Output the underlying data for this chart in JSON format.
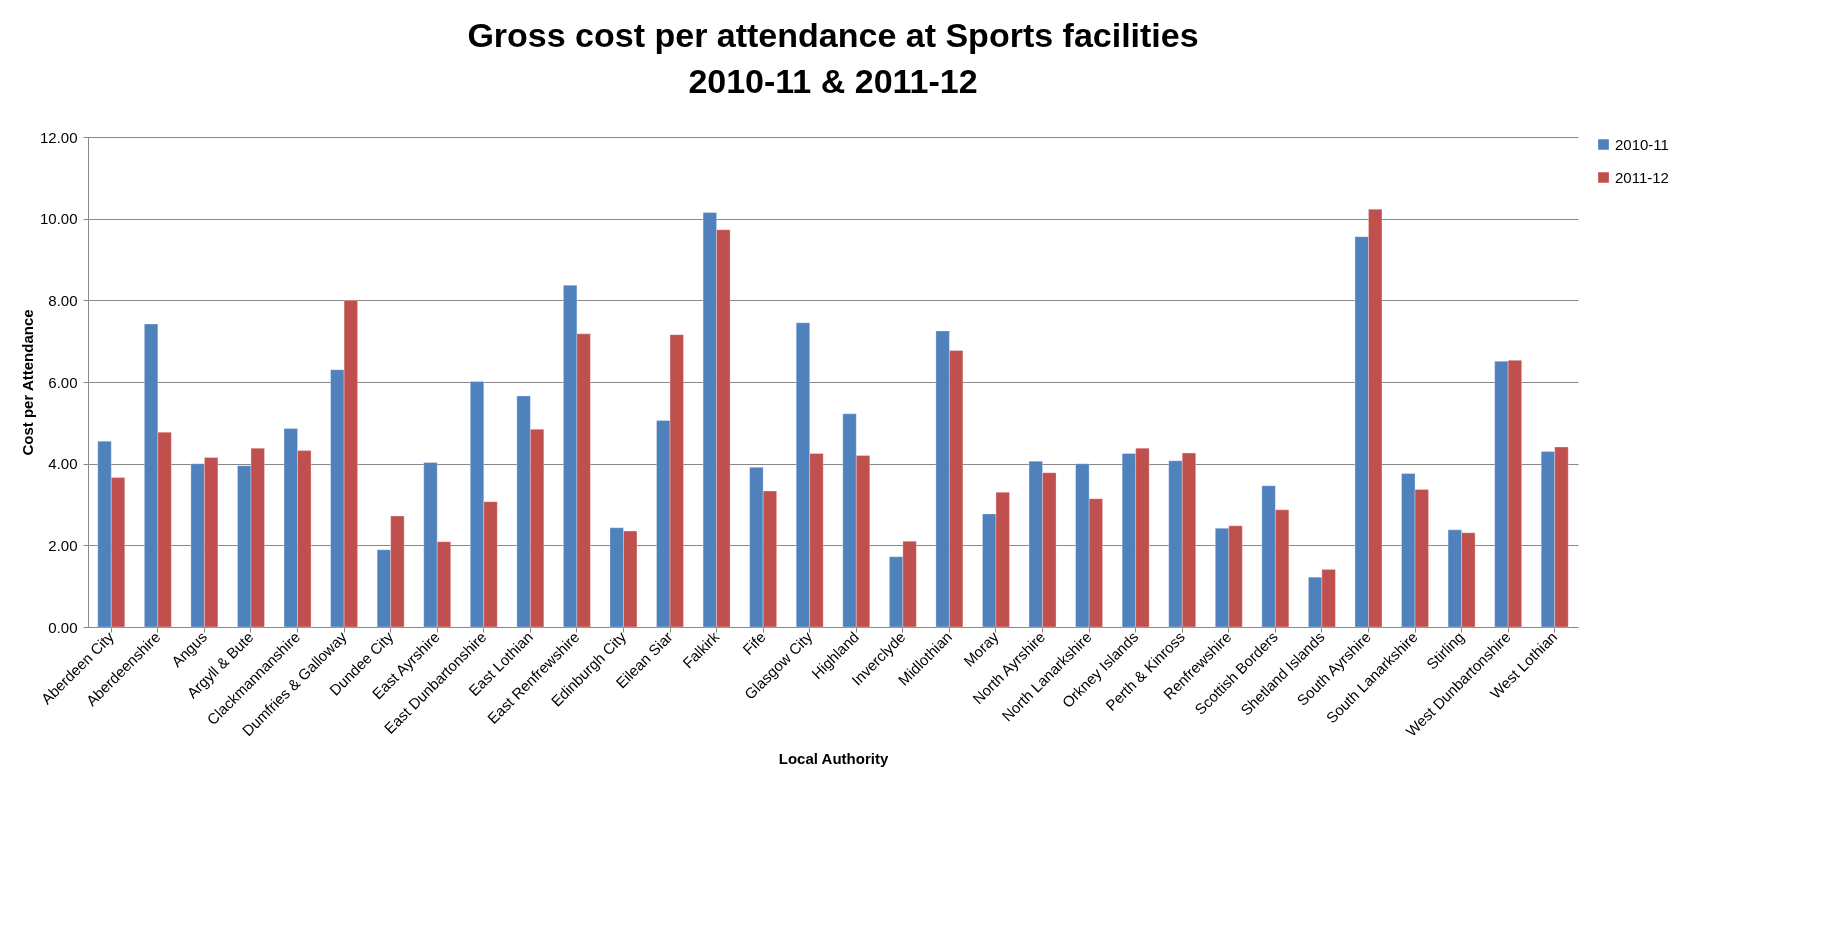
{
  "chart_data": {
    "type": "bar",
    "title": "Gross cost per attendance at Sports facilities\n2010-11 & 2011-12",
    "xlabel": "Local Authority",
    "ylabel": "Cost per Attendance",
    "categories": [
      "Aberdeen City",
      "Aberdeenshire",
      "Angus",
      "Argyll & Bute",
      "Clackmannanshire",
      "Dumfries & Galloway",
      "Dundee City",
      "East Ayrshire",
      "East Dunbartonshire",
      "East Lothian",
      "East Renfrewshire",
      "Edinburgh City",
      "Eilean Siar",
      "Falkirk",
      "Fife",
      "Glasgow City",
      "Highland",
      "Inverclyde",
      "Midlothian",
      "Moray",
      "North Ayrshire",
      "North Lanarkshire",
      "Orkney Islands",
      "Perth & Kinross",
      "Renfrewshire",
      "Scottish Borders",
      "Shetland Islands",
      "South Ayrshire",
      "South Lanarkshire",
      "Stirling",
      "West Dunbartonshire",
      "West Lothian"
    ],
    "series": [
      {
        "name": "2010-11",
        "color": "#4f81bd",
        "values": [
          4.55,
          7.42,
          4.0,
          3.95,
          4.86,
          6.3,
          1.89,
          4.03,
          6.01,
          5.66,
          8.37,
          2.43,
          5.06,
          10.15,
          3.91,
          7.45,
          5.22,
          1.72,
          7.25,
          2.77,
          4.06,
          4.0,
          4.25,
          4.07,
          2.42,
          3.46,
          1.22,
          9.56,
          3.76,
          2.38,
          6.51,
          4.3
        ]
      },
      {
        "name": "2011-12",
        "color": "#c0504d",
        "values": [
          3.66,
          4.77,
          4.15,
          4.38,
          4.32,
          8.0,
          2.72,
          2.09,
          3.07,
          4.84,
          7.18,
          2.35,
          7.16,
          9.73,
          3.33,
          4.25,
          4.2,
          2.1,
          6.77,
          3.3,
          3.78,
          3.14,
          4.38,
          4.26,
          2.48,
          2.87,
          1.41,
          10.23,
          3.37,
          2.31,
          6.53,
          4.41
        ]
      }
    ],
    "ylim": [
      0,
      12
    ],
    "yticks": [
      {
        "value": 0,
        "label": "0.00"
      },
      {
        "value": 2,
        "label": "2.00"
      },
      {
        "value": 4,
        "label": "4.00"
      },
      {
        "value": 6,
        "label": "6.00"
      },
      {
        "value": 8,
        "label": "8.00"
      },
      {
        "value": 10,
        "label": "10.00"
      },
      {
        "value": 12,
        "label": "12.00"
      }
    ],
    "grid": "y",
    "legend": "right"
  }
}
